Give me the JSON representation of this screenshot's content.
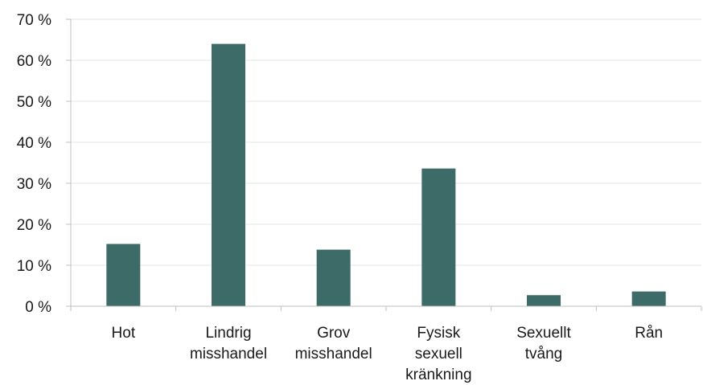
{
  "chart_data": {
    "type": "bar",
    "categories": [
      [
        "Hot"
      ],
      [
        "Lindrig",
        "misshandel"
      ],
      [
        "Grov",
        "misshandel"
      ],
      [
        "Fysisk",
        "sexuell",
        "kränkning"
      ],
      [
        "Sexuellt",
        "tvång"
      ],
      [
        "Rån"
      ]
    ],
    "values": [
      15.2,
      64.0,
      13.8,
      33.6,
      2.7,
      3.6
    ],
    "ylim": [
      0,
      70
    ],
    "yticks": [
      0,
      10,
      20,
      30,
      40,
      50,
      60,
      70
    ],
    "ytick_suffix": " %",
    "grid": true,
    "bar_color": "#3d6b68"
  }
}
